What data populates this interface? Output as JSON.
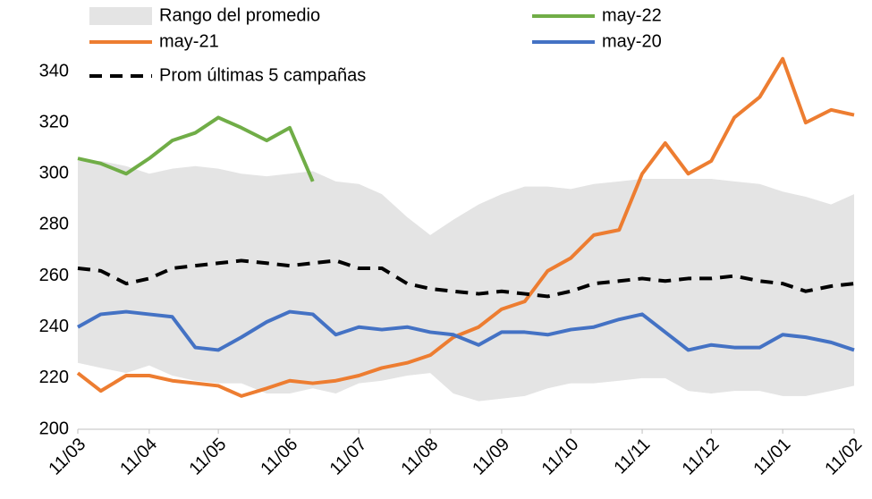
{
  "chart_data": {
    "type": "line",
    "x": [
      "11/03",
      "21/03",
      "01/04",
      "11/04",
      "21/04",
      "01/05",
      "11/05",
      "21/05",
      "01/06",
      "11/06",
      "21/06",
      "01/07",
      "11/07",
      "21/07",
      "01/08",
      "11/08",
      "21/08",
      "01/09",
      "11/09",
      "21/09",
      "01/10",
      "11/10",
      "21/10",
      "01/11",
      "11/11",
      "21/11",
      "01/12",
      "11/12",
      "21/12",
      "01/01",
      "11/01",
      "21/01",
      "01/02",
      "11/02"
    ],
    "xlim": [
      "11/03",
      "11/02"
    ],
    "xticks": [
      "11/03",
      "11/04",
      "11/05",
      "11/06",
      "11/07",
      "11/08",
      "11/09",
      "11/10",
      "11/11",
      "11/12",
      "11/01",
      "11/02"
    ],
    "ylim": [
      200,
      350
    ],
    "yticks": [
      200,
      220,
      240,
      260,
      280,
      300,
      320,
      340
    ],
    "band": {
      "name": "Rango del promedio",
      "color": "#e4e4e4",
      "high": [
        305,
        305,
        303,
        300,
        302,
        303,
        302,
        300,
        299,
        300,
        301,
        297,
        296,
        292,
        283,
        276,
        282,
        288,
        292,
        295,
        295,
        294,
        296,
        297,
        298,
        298,
        298,
        298,
        297,
        296,
        293,
        291,
        288,
        292
      ],
      "low": [
        226,
        224,
        222,
        225,
        221,
        219,
        218,
        218,
        214,
        214,
        216,
        214,
        218,
        219,
        221,
        222,
        214,
        211,
        212,
        213,
        216,
        218,
        218,
        219,
        220,
        220,
        215,
        214,
        215,
        215,
        213,
        213,
        215,
        217
      ]
    },
    "series": [
      {
        "name": "may-22",
        "color": "#70ad47",
        "dashed": false,
        "values": [
          306,
          304,
          300,
          306,
          313,
          316,
          322,
          318,
          313,
          318,
          297,
          null,
          null,
          null,
          null,
          null,
          null,
          null,
          null,
          null,
          null,
          null,
          null,
          null,
          null,
          null,
          null,
          null,
          null,
          null,
          null,
          null,
          null,
          null
        ]
      },
      {
        "name": "may-21",
        "color": "#ed7d31",
        "dashed": false,
        "values": [
          222,
          215,
          221,
          221,
          219,
          218,
          217,
          213,
          216,
          219,
          218,
          219,
          221,
          224,
          226,
          229,
          236,
          240,
          247,
          250,
          262,
          267,
          276,
          278,
          300,
          312,
          300,
          305,
          322,
          330,
          345,
          320,
          325,
          323
        ]
      },
      {
        "name": "may-20",
        "color": "#4472c4",
        "dashed": false,
        "values": [
          240,
          245,
          246,
          245,
          244,
          232,
          231,
          236,
          242,
          246,
          245,
          237,
          240,
          239,
          240,
          238,
          237,
          233,
          238,
          238,
          237,
          239,
          240,
          243,
          245,
          238,
          231,
          233,
          232,
          232,
          237,
          236,
          234,
          231
        ]
      },
      {
        "name": "Prom últimas 5 campañas",
        "color": "#000000",
        "dashed": true,
        "values": [
          263,
          262,
          257,
          259,
          263,
          264,
          265,
          266,
          265,
          264,
          265,
          266,
          263,
          263,
          257,
          255,
          254,
          253,
          254,
          253,
          252,
          254,
          257,
          258,
          259,
          258,
          259,
          259,
          260,
          258,
          257,
          254,
          256,
          257
        ]
      }
    ]
  }
}
